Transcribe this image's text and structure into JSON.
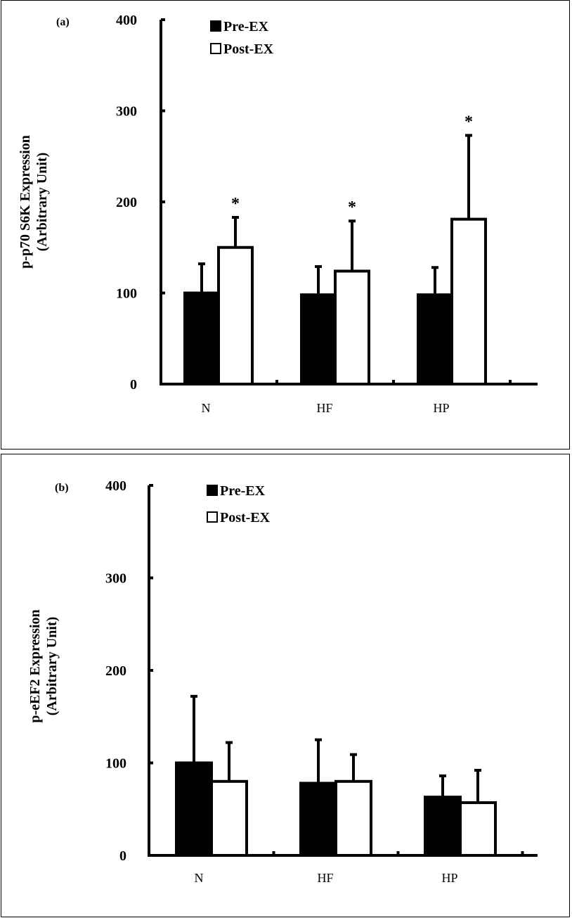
{
  "chart_data": [
    {
      "type": "bar",
      "panel_label": "(a)",
      "ylabel_line1": "p-p70 S6K Expression",
      "ylabel_line2": "(Arbitrary Unit)",
      "categories": [
        "N",
        "HF",
        "HP"
      ],
      "yticks": [
        "0",
        "100",
        "200",
        "300",
        "400"
      ],
      "ylim": [
        0,
        400
      ],
      "legend_position": "top",
      "series": [
        {
          "name": "Pre-EX",
          "color": "#000000",
          "values": [
            100,
            98,
            98
          ],
          "error": [
            32,
            31,
            30
          ]
        },
        {
          "name": "Post-EX",
          "color": "#ffffff",
          "values": [
            150,
            124,
            181
          ],
          "error": [
            33,
            55,
            92
          ]
        }
      ],
      "annotations": [
        {
          "category": "N",
          "series": "Post-EX",
          "text": "*"
        },
        {
          "category": "HF",
          "series": "Post-EX",
          "text": "*"
        },
        {
          "category": "HP",
          "series": "Post-EX",
          "text": "*"
        }
      ]
    },
    {
      "type": "bar",
      "panel_label": "(b)",
      "ylabel_line1": "p-eEF2 Expression",
      "ylabel_line2": "(Arbitrary Unit)",
      "categories": [
        "N",
        "HF",
        "HP"
      ],
      "yticks": [
        "0",
        "100",
        "200",
        "300",
        "400"
      ],
      "ylim": [
        0,
        400
      ],
      "legend_position": "top",
      "series": [
        {
          "name": "Pre-EX",
          "color": "#000000",
          "values": [
            100,
            78,
            63
          ],
          "error": [
            72,
            47,
            23
          ]
        },
        {
          "name": "Post-EX",
          "color": "#ffffff",
          "values": [
            80,
            80,
            57
          ],
          "error": [
            42,
            29,
            35
          ]
        }
      ],
      "annotations": []
    }
  ]
}
